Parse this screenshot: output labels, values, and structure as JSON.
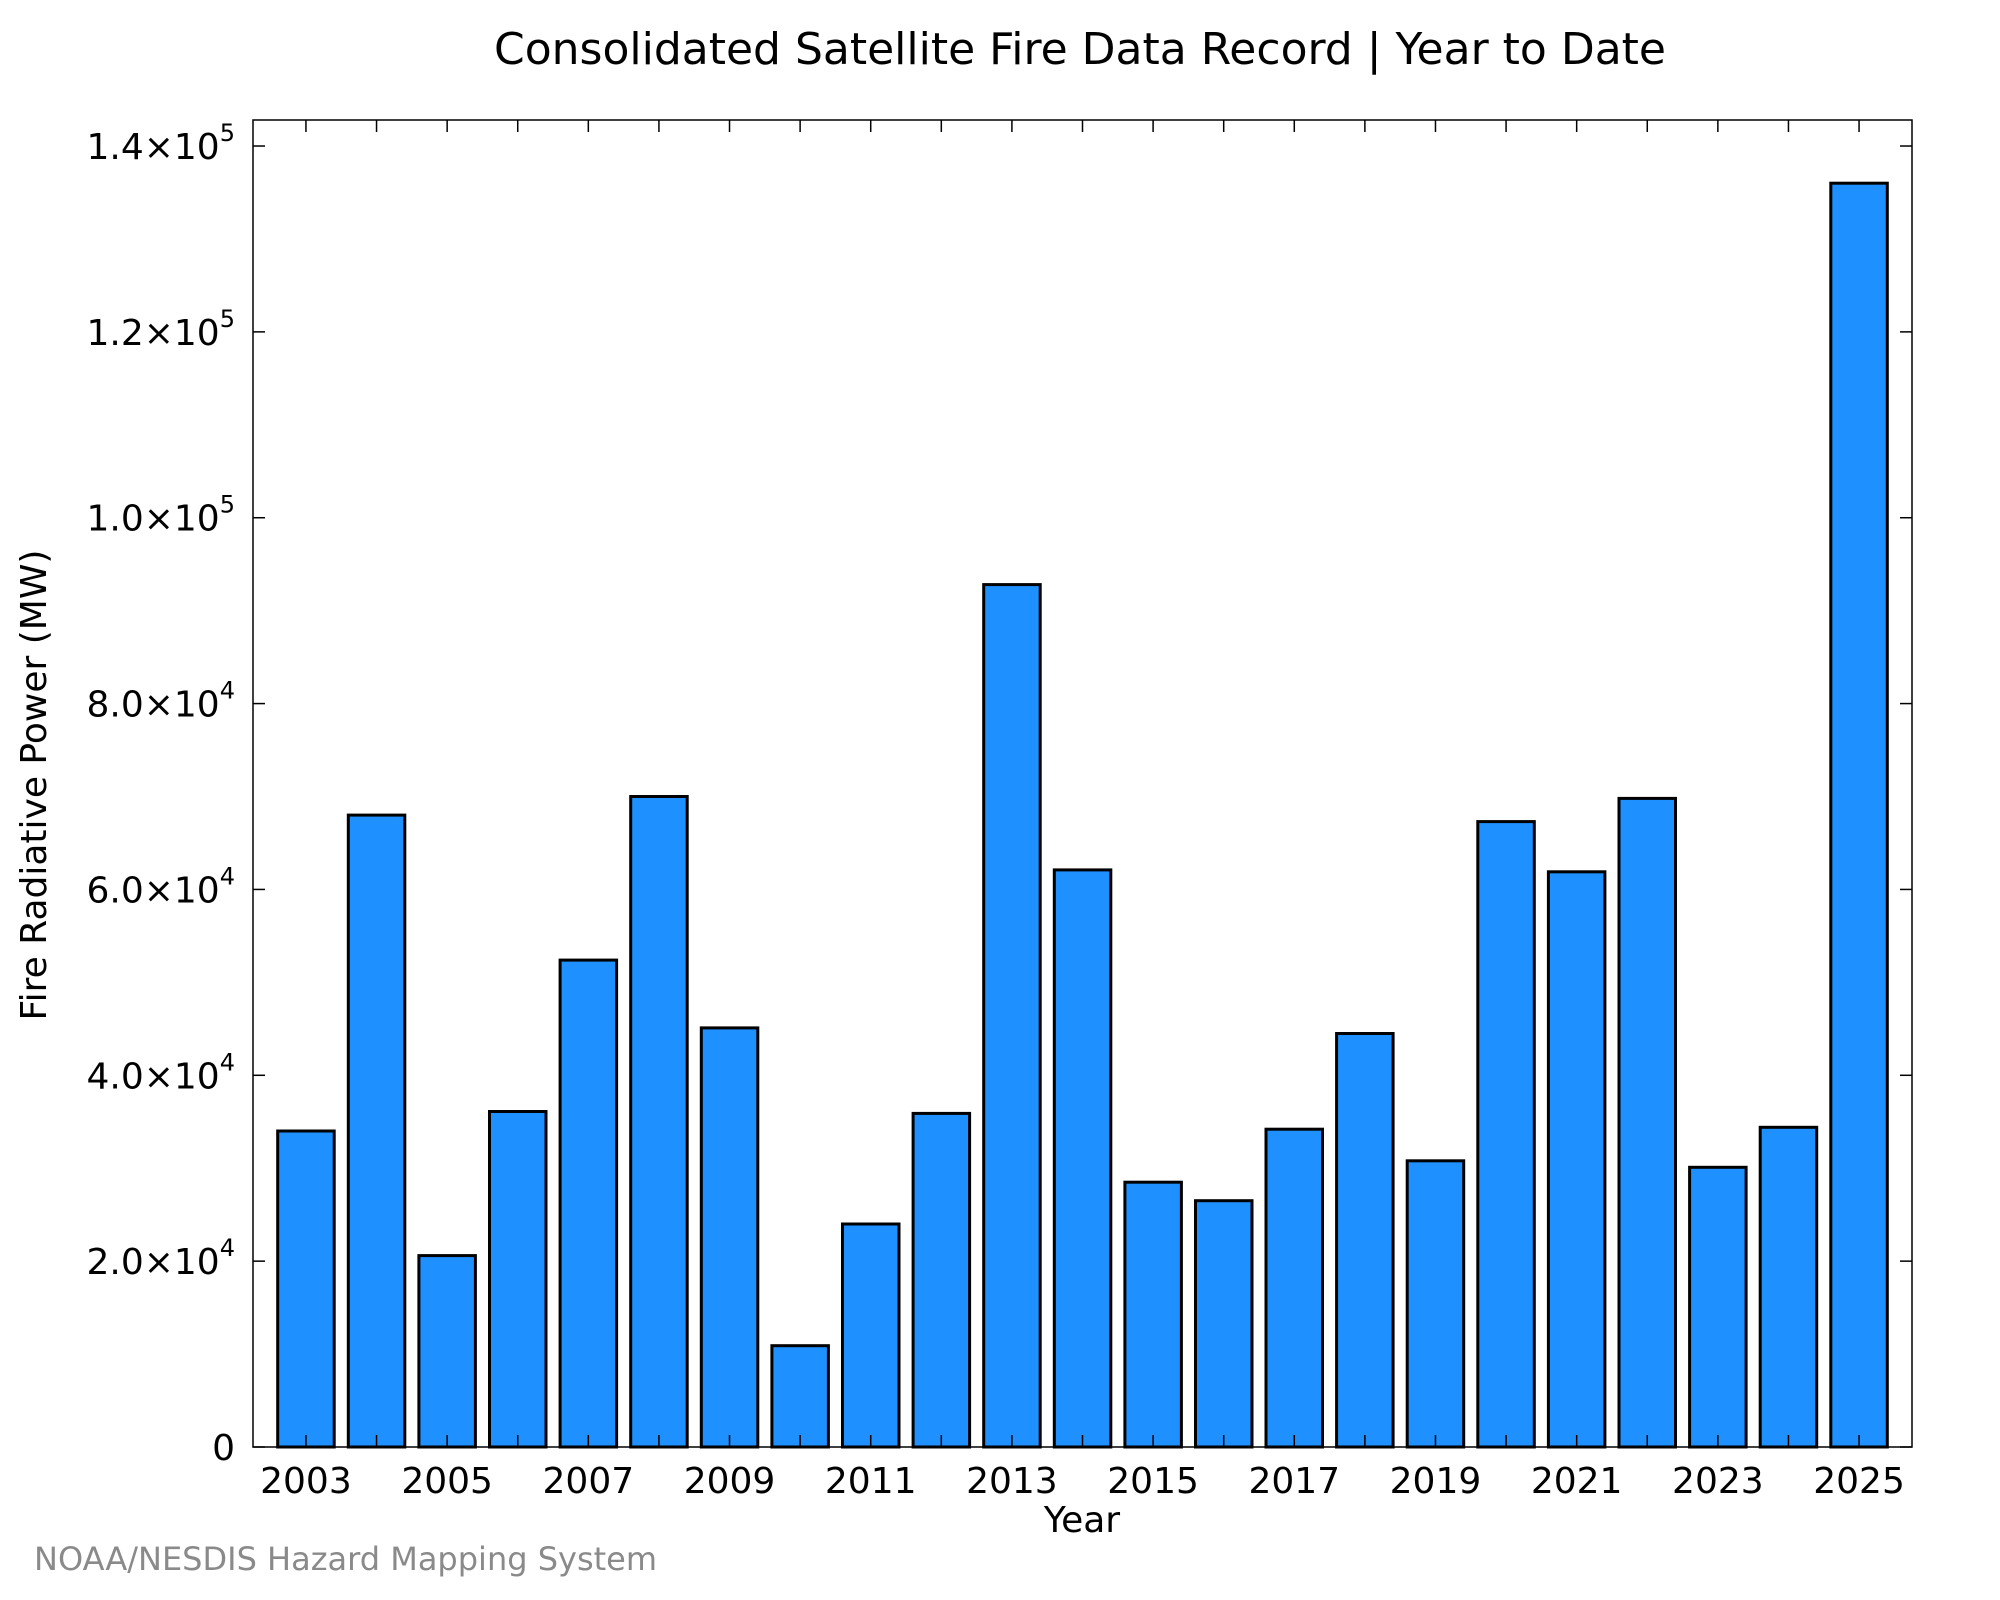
{
  "credit": "NOAA/NESDIS Hazard Mapping System",
  "chart_data": {
    "type": "bar",
    "title": "Consolidated Satellite Fire Data Record | Year to Date",
    "xlabel": "Year",
    "ylabel": "Fire Radiative Power (MW)",
    "categories": [
      "2003",
      "2004",
      "2005",
      "2006",
      "2007",
      "2008",
      "2009",
      "2010",
      "2011",
      "2012",
      "2013",
      "2014",
      "2015",
      "2016",
      "2017",
      "2018",
      "2019",
      "2020",
      "2021",
      "2022",
      "2023",
      "2024",
      "2025"
    ],
    "values": [
      34000,
      68000,
      20600,
      36100,
      52400,
      70000,
      45100,
      10900,
      24000,
      35900,
      92800,
      62100,
      28500,
      26500,
      34200,
      44500,
      30800,
      67300,
      61900,
      69800,
      30100,
      34400,
      136000
    ],
    "ylim": [
      0,
      142800
    ],
    "y_ticks": [
      {
        "value": 0,
        "mantissa": "0",
        "exponent": ""
      },
      {
        "value": 20000,
        "mantissa": "2.0×10",
        "exponent": "4"
      },
      {
        "value": 40000,
        "mantissa": "4.0×10",
        "exponent": "4"
      },
      {
        "value": 60000,
        "mantissa": "6.0×10",
        "exponent": "4"
      },
      {
        "value": 80000,
        "mantissa": "8.0×10",
        "exponent": "4"
      },
      {
        "value": 100000,
        "mantissa": "1.0×10",
        "exponent": "5"
      },
      {
        "value": 120000,
        "mantissa": "1.2×10",
        "exponent": "5"
      },
      {
        "value": 140000,
        "mantissa": "1.4×10",
        "exponent": "5"
      }
    ],
    "x_tick_labels": [
      "2003",
      "2005",
      "2007",
      "2009",
      "2011",
      "2013",
      "2015",
      "2017",
      "2019",
      "2021",
      "2023",
      "2025"
    ],
    "bar_color": "#1e90ff",
    "bar_edge_color": "#000000",
    "grid": false,
    "legend": "none"
  }
}
